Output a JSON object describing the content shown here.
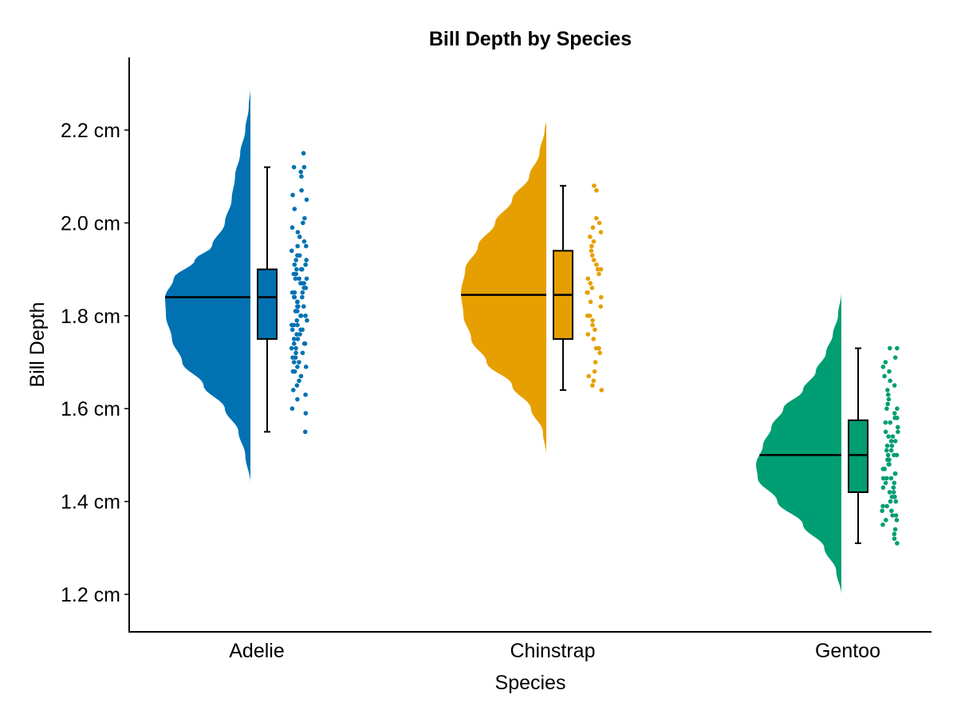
{
  "chart_data": {
    "type": "raincloud",
    "title": "Bill Depth by Species",
    "xlabel": "Species",
    "ylabel": "Bill Depth",
    "ylim": [
      1.12,
      2.36
    ],
    "yticks": [
      1.2,
      1.4,
      1.6,
      1.8,
      2.0,
      2.2
    ],
    "ytick_labels": [
      "1.2 cm",
      "1.4 cm",
      "1.6 cm",
      "1.8 cm",
      "2.0 cm",
      "2.2 cm"
    ],
    "categories": [
      "Adelie",
      "Chinstrap",
      "Gentoo"
    ],
    "grid": false,
    "series": [
      {
        "color": "#0072b2",
        "box": {
          "min": 1.55,
          "q1": 1.75,
          "median": 1.84,
          "q3": 1.9,
          "max": 2.12
        },
        "density_range": [
          1.44,
          2.29
        ],
        "density": [
          [
            1.44,
            0.0
          ],
          [
            1.5,
            0.06
          ],
          [
            1.55,
            0.14
          ],
          [
            1.6,
            0.3
          ],
          [
            1.65,
            0.55
          ],
          [
            1.7,
            0.8
          ],
          [
            1.75,
            0.92
          ],
          [
            1.8,
            0.99
          ],
          [
            1.84,
            1.0
          ],
          [
            1.88,
            0.9
          ],
          [
            1.92,
            0.65
          ],
          [
            1.95,
            0.45
          ],
          [
            2.0,
            0.3
          ],
          [
            2.05,
            0.22
          ],
          [
            2.1,
            0.18
          ],
          [
            2.15,
            0.12
          ],
          [
            2.2,
            0.06
          ],
          [
            2.25,
            0.02
          ],
          [
            2.29,
            0.0
          ]
        ],
        "points": [
          1.55,
          1.59,
          1.6,
          1.62,
          1.63,
          1.64,
          1.65,
          1.66,
          1.67,
          1.68,
          1.68,
          1.69,
          1.69,
          1.7,
          1.7,
          1.71,
          1.71,
          1.72,
          1.72,
          1.73,
          1.73,
          1.74,
          1.74,
          1.74,
          1.75,
          1.75,
          1.76,
          1.76,
          1.77,
          1.77,
          1.77,
          1.78,
          1.78,
          1.78,
          1.79,
          1.79,
          1.8,
          1.8,
          1.8,
          1.81,
          1.81,
          1.82,
          1.82,
          1.82,
          1.83,
          1.83,
          1.84,
          1.84,
          1.84,
          1.85,
          1.85,
          1.85,
          1.86,
          1.86,
          1.86,
          1.87,
          1.87,
          1.87,
          1.88,
          1.88,
          1.88,
          1.89,
          1.89,
          1.9,
          1.9,
          1.9,
          1.91,
          1.91,
          1.92,
          1.92,
          1.93,
          1.93,
          1.94,
          1.95,
          1.95,
          1.96,
          1.97,
          1.98,
          1.99,
          2.0,
          2.01,
          2.03,
          2.05,
          2.06,
          2.07,
          2.1,
          2.11,
          2.12,
          2.12,
          2.15
        ]
      },
      {
        "color": "#e69f00",
        "box": {
          "min": 1.64,
          "q1": 1.75,
          "median": 1.845,
          "q3": 1.94,
          "max": 2.08
        },
        "density_range": [
          1.5,
          2.22
        ],
        "density": [
          [
            1.5,
            0.0
          ],
          [
            1.55,
            0.04
          ],
          [
            1.6,
            0.18
          ],
          [
            1.65,
            0.4
          ],
          [
            1.7,
            0.7
          ],
          [
            1.75,
            0.88
          ],
          [
            1.8,
            0.97
          ],
          [
            1.85,
            1.0
          ],
          [
            1.9,
            0.95
          ],
          [
            1.95,
            0.8
          ],
          [
            2.0,
            0.6
          ],
          [
            2.05,
            0.4
          ],
          [
            2.1,
            0.2
          ],
          [
            2.15,
            0.08
          ],
          [
            2.2,
            0.02
          ],
          [
            2.22,
            0.0
          ]
        ],
        "points": [
          1.64,
          1.65,
          1.66,
          1.67,
          1.68,
          1.7,
          1.72,
          1.73,
          1.73,
          1.75,
          1.76,
          1.77,
          1.78,
          1.79,
          1.8,
          1.8,
          1.82,
          1.83,
          1.84,
          1.85,
          1.85,
          1.86,
          1.87,
          1.88,
          1.89,
          1.9,
          1.9,
          1.91,
          1.92,
          1.93,
          1.94,
          1.95,
          1.96,
          1.97,
          1.98,
          1.99,
          2.0,
          2.01,
          2.07,
          2.08
        ]
      },
      {
        "color": "#009e73",
        "box": {
          "min": 1.31,
          "q1": 1.42,
          "median": 1.5,
          "q3": 1.575,
          "max": 1.73
        },
        "density_range": [
          1.2,
          1.85
        ],
        "density": [
          [
            1.2,
            0.0
          ],
          [
            1.25,
            0.06
          ],
          [
            1.3,
            0.2
          ],
          [
            1.35,
            0.45
          ],
          [
            1.4,
            0.75
          ],
          [
            1.45,
            0.98
          ],
          [
            1.48,
            1.0
          ],
          [
            1.52,
            0.92
          ],
          [
            1.56,
            0.82
          ],
          [
            1.6,
            0.68
          ],
          [
            1.64,
            0.45
          ],
          [
            1.68,
            0.3
          ],
          [
            1.72,
            0.18
          ],
          [
            1.76,
            0.1
          ],
          [
            1.8,
            0.04
          ],
          [
            1.85,
            0.0
          ]
        ],
        "points": [
          1.31,
          1.32,
          1.33,
          1.34,
          1.35,
          1.36,
          1.36,
          1.37,
          1.37,
          1.38,
          1.38,
          1.39,
          1.39,
          1.4,
          1.4,
          1.41,
          1.41,
          1.42,
          1.42,
          1.43,
          1.43,
          1.44,
          1.44,
          1.45,
          1.45,
          1.45,
          1.46,
          1.46,
          1.47,
          1.47,
          1.48,
          1.48,
          1.49,
          1.49,
          1.5,
          1.5,
          1.5,
          1.51,
          1.51,
          1.52,
          1.52,
          1.53,
          1.53,
          1.54,
          1.54,
          1.55,
          1.55,
          1.56,
          1.57,
          1.57,
          1.58,
          1.58,
          1.59,
          1.6,
          1.6,
          1.61,
          1.62,
          1.63,
          1.64,
          1.65,
          1.66,
          1.67,
          1.68,
          1.69,
          1.7,
          1.71,
          1.73,
          1.73
        ]
      }
    ]
  }
}
